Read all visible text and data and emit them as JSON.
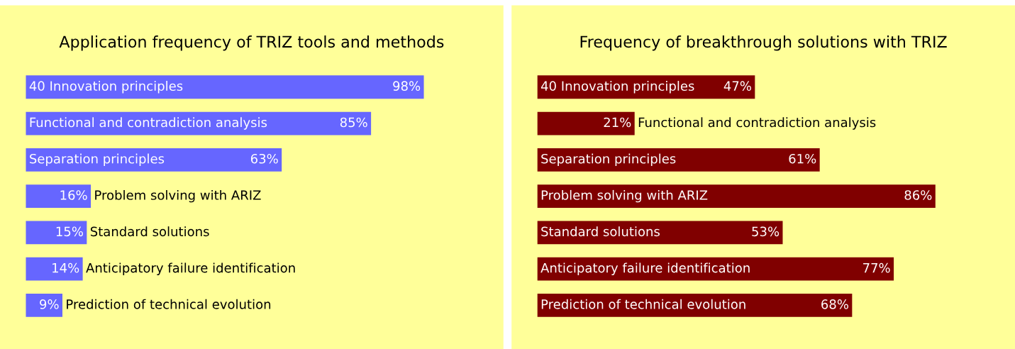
{
  "chart_data": [
    {
      "type": "bar",
      "orientation": "horizontal",
      "title": "Application frequency of TRIZ tools and methods",
      "categories": [
        "40 Innovation principles",
        "Functional and contradiction analysis",
        "Separation principles",
        "Problem solving with ARIZ",
        "Standard solutions",
        "Anticipatory failure identification",
        "Prediction of technical evolution"
      ],
      "values": [
        98,
        85,
        63,
        16,
        15,
        14,
        9
      ],
      "color": "#6666ff",
      "value_labels": [
        "98%",
        "85%",
        "63%",
        "16%",
        "15%",
        "14%",
        "9%"
      ]
    },
    {
      "type": "bar",
      "orientation": "horizontal",
      "title": "Frequency of breakthrough solutions with TRIZ",
      "categories": [
        "40 Innovation principles",
        "Functional and contradiction analysis",
        "Separation principles",
        "Problem solving with ARIZ",
        "Standard solutions",
        "Anticipatory failure identification",
        "Prediction of technical evolution"
      ],
      "values": [
        47,
        21,
        61,
        86,
        53,
        77,
        68
      ],
      "color": "#800000",
      "value_labels": [
        "47%",
        "21%",
        "61%",
        "86%",
        "53%",
        "77%",
        "68%"
      ]
    }
  ]
}
